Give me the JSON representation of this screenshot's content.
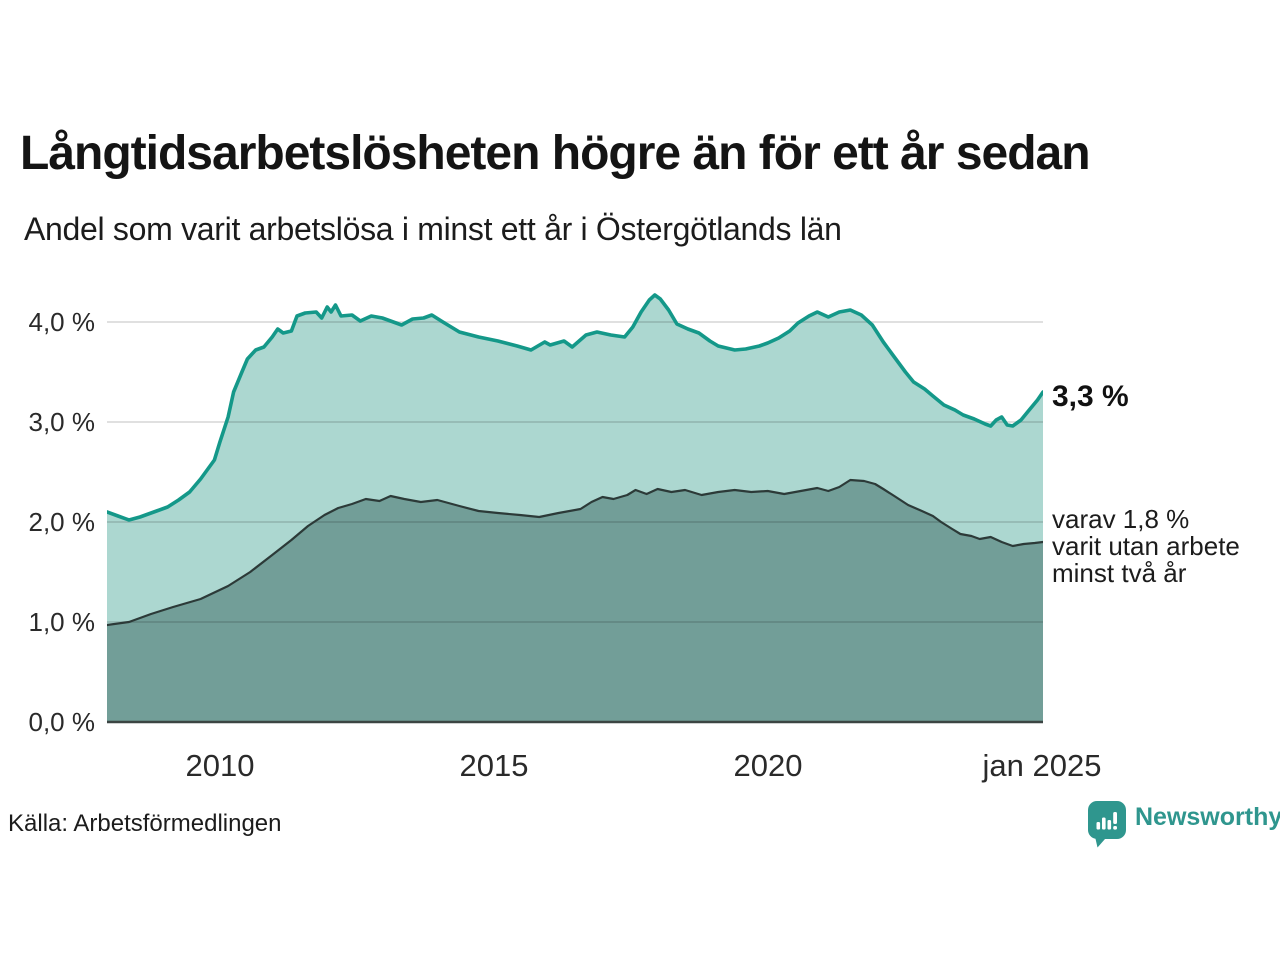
{
  "title": "Långtidsarbetslösheten högre än för ett år sedan",
  "subtitle": "Andel som varit arbetslösa i minst ett år i Östergötlands län",
  "source_label": "Källa: Arbetsförmedlingen",
  "logo": {
    "text": "Newsworthy",
    "icon": "newsworthy-speech-bubble-barchart-icon"
  },
  "annotations": {
    "latest_total": "3,3 %",
    "secondary_line1": "varav 1,8 %",
    "secondary_line2": "varit utan arbete",
    "secondary_line3": "minst två år"
  },
  "colors": {
    "total_line": "#149889",
    "total_fill": "#a9d5ce",
    "two_years_line": "#2c3a38",
    "two_years_fill": "#6f9c96",
    "gridline": "rgba(0,0,0,0.12)",
    "baseline": "#3b4543",
    "logo_teal": "#2f968e"
  },
  "chart_data": {
    "type": "area",
    "title": "Långtidsarbetslösheten högre än för ett år sedan",
    "subtitle": "Andel som varit arbetslösa i minst ett år i Östergötlands län",
    "xlabel": "",
    "ylabel": "",
    "xlim": [
      2008,
      2025
    ],
    "ylim": [
      0,
      4.49
    ],
    "grid": true,
    "x_ticks": [
      "2010",
      "2015",
      "2020",
      "jan 2025"
    ],
    "x_tick_years": [
      2010,
      2015,
      2020,
      2025
    ],
    "y_ticks": [
      "4,0 %",
      "3,0 %",
      "2,0 %",
      "1,0 %",
      "0,0 %"
    ],
    "y_tick_values": [
      4,
      3,
      2,
      1,
      0
    ],
    "series": [
      {
        "name": "Andel arbetslösa minst ett år",
        "latest_value": 3.3,
        "points": [
          [
            2008.0,
            2.1
          ],
          [
            2008.2,
            2.06
          ],
          [
            2008.4,
            2.02
          ],
          [
            2008.6,
            2.05
          ],
          [
            2008.9,
            2.11
          ],
          [
            2009.1,
            2.15
          ],
          [
            2009.3,
            2.22
          ],
          [
            2009.5,
            2.3
          ],
          [
            2009.7,
            2.43
          ],
          [
            2009.95,
            2.62
          ],
          [
            2010.05,
            2.8
          ],
          [
            2010.2,
            3.05
          ],
          [
            2010.3,
            3.3
          ],
          [
            2010.45,
            3.5
          ],
          [
            2010.55,
            3.63
          ],
          [
            2010.7,
            3.72
          ],
          [
            2010.85,
            3.75
          ],
          [
            2011.0,
            3.85
          ],
          [
            2011.1,
            3.93
          ],
          [
            2011.2,
            3.89
          ],
          [
            2011.35,
            3.91
          ],
          [
            2011.45,
            4.06
          ],
          [
            2011.6,
            4.09
          ],
          [
            2011.8,
            4.1
          ],
          [
            2011.9,
            4.04
          ],
          [
            2012.0,
            4.15
          ],
          [
            2012.07,
            4.1
          ],
          [
            2012.15,
            4.17
          ],
          [
            2012.25,
            4.06
          ],
          [
            2012.45,
            4.07
          ],
          [
            2012.6,
            4.01
          ],
          [
            2012.8,
            4.06
          ],
          [
            2013.0,
            4.04
          ],
          [
            2013.15,
            4.01
          ],
          [
            2013.35,
            3.97
          ],
          [
            2013.55,
            4.03
          ],
          [
            2013.75,
            4.04
          ],
          [
            2013.9,
            4.07
          ],
          [
            2014.1,
            4.0
          ],
          [
            2014.4,
            3.9
          ],
          [
            2014.75,
            3.85
          ],
          [
            2015.1,
            3.81
          ],
          [
            2015.45,
            3.76
          ],
          [
            2015.7,
            3.72
          ],
          [
            2015.95,
            3.8
          ],
          [
            2016.05,
            3.77
          ],
          [
            2016.3,
            3.81
          ],
          [
            2016.45,
            3.75
          ],
          [
            2016.7,
            3.87
          ],
          [
            2016.9,
            3.9
          ],
          [
            2017.15,
            3.87
          ],
          [
            2017.4,
            3.85
          ],
          [
            2017.55,
            3.95
          ],
          [
            2017.7,
            4.1
          ],
          [
            2017.85,
            4.22
          ],
          [
            2017.95,
            4.27
          ],
          [
            2018.05,
            4.23
          ],
          [
            2018.2,
            4.12
          ],
          [
            2018.35,
            3.98
          ],
          [
            2018.55,
            3.93
          ],
          [
            2018.75,
            3.89
          ],
          [
            2018.95,
            3.81
          ],
          [
            2019.1,
            3.76
          ],
          [
            2019.4,
            3.72
          ],
          [
            2019.6,
            3.73
          ],
          [
            2019.85,
            3.76
          ],
          [
            2020.0,
            3.79
          ],
          [
            2020.2,
            3.84
          ],
          [
            2020.4,
            3.91
          ],
          [
            2020.55,
            3.99
          ],
          [
            2020.75,
            4.06
          ],
          [
            2020.9,
            4.1
          ],
          [
            2021.1,
            4.05
          ],
          [
            2021.3,
            4.1
          ],
          [
            2021.5,
            4.12
          ],
          [
            2021.7,
            4.07
          ],
          [
            2021.9,
            3.97
          ],
          [
            2022.1,
            3.8
          ],
          [
            2022.3,
            3.65
          ],
          [
            2022.5,
            3.5
          ],
          [
            2022.65,
            3.4
          ],
          [
            2022.85,
            3.33
          ],
          [
            2023.0,
            3.26
          ],
          [
            2023.2,
            3.17
          ],
          [
            2023.4,
            3.12
          ],
          [
            2023.55,
            3.07
          ],
          [
            2023.75,
            3.03
          ],
          [
            2023.95,
            2.98
          ],
          [
            2024.05,
            2.96
          ],
          [
            2024.15,
            3.02
          ],
          [
            2024.25,
            3.05
          ],
          [
            2024.35,
            2.97
          ],
          [
            2024.45,
            2.96
          ],
          [
            2024.6,
            3.02
          ],
          [
            2024.75,
            3.12
          ],
          [
            2024.9,
            3.22
          ],
          [
            2025.0,
            3.3
          ]
        ]
      },
      {
        "name": "varav utan arbete minst två år",
        "latest_value": 1.8,
        "points": [
          [
            2008.0,
            0.97
          ],
          [
            2008.4,
            1.0
          ],
          [
            2008.8,
            1.08
          ],
          [
            2009.2,
            1.15
          ],
          [
            2009.7,
            1.23
          ],
          [
            2010.2,
            1.36
          ],
          [
            2010.6,
            1.5
          ],
          [
            2011.0,
            1.67
          ],
          [
            2011.35,
            1.82
          ],
          [
            2011.65,
            1.96
          ],
          [
            2011.95,
            2.07
          ],
          [
            2012.2,
            2.14
          ],
          [
            2012.45,
            2.18
          ],
          [
            2012.7,
            2.23
          ],
          [
            2012.95,
            2.21
          ],
          [
            2013.15,
            2.26
          ],
          [
            2013.4,
            2.23
          ],
          [
            2013.7,
            2.2
          ],
          [
            2014.0,
            2.22
          ],
          [
            2014.4,
            2.16
          ],
          [
            2014.75,
            2.11
          ],
          [
            2015.1,
            2.09
          ],
          [
            2015.5,
            2.07
          ],
          [
            2015.85,
            2.05
          ],
          [
            2016.2,
            2.09
          ],
          [
            2016.6,
            2.13
          ],
          [
            2016.8,
            2.2
          ],
          [
            2017.0,
            2.25
          ],
          [
            2017.2,
            2.23
          ],
          [
            2017.45,
            2.27
          ],
          [
            2017.6,
            2.32
          ],
          [
            2017.8,
            2.28
          ],
          [
            2018.0,
            2.33
          ],
          [
            2018.25,
            2.3
          ],
          [
            2018.5,
            2.32
          ],
          [
            2018.8,
            2.27
          ],
          [
            2019.1,
            2.3
          ],
          [
            2019.4,
            2.32
          ],
          [
            2019.7,
            2.3
          ],
          [
            2020.0,
            2.31
          ],
          [
            2020.3,
            2.28
          ],
          [
            2020.6,
            2.31
          ],
          [
            2020.9,
            2.34
          ],
          [
            2021.1,
            2.31
          ],
          [
            2021.3,
            2.35
          ],
          [
            2021.5,
            2.42
          ],
          [
            2021.75,
            2.41
          ],
          [
            2021.95,
            2.38
          ],
          [
            2022.1,
            2.33
          ],
          [
            2022.3,
            2.26
          ],
          [
            2022.55,
            2.17
          ],
          [
            2022.8,
            2.11
          ],
          [
            2023.0,
            2.06
          ],
          [
            2023.15,
            2.0
          ],
          [
            2023.35,
            1.93
          ],
          [
            2023.5,
            1.88
          ],
          [
            2023.7,
            1.86
          ],
          [
            2023.85,
            1.83
          ],
          [
            2024.05,
            1.85
          ],
          [
            2024.25,
            1.8
          ],
          [
            2024.45,
            1.76
          ],
          [
            2024.65,
            1.78
          ],
          [
            2024.85,
            1.79
          ],
          [
            2025.0,
            1.8
          ]
        ]
      }
    ],
    "legend_position": "right-annotations"
  }
}
